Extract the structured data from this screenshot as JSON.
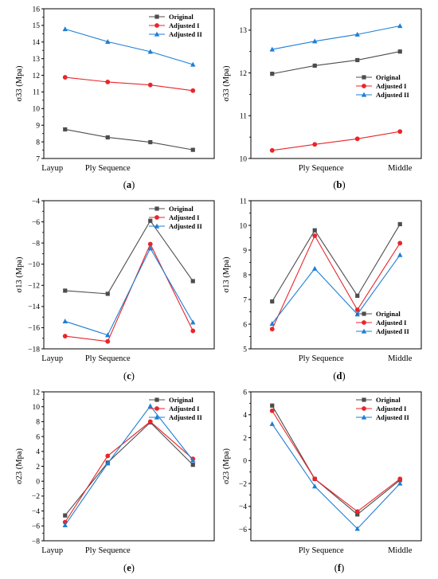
{
  "legend_labels": [
    "Original",
    "Adjusted I",
    "Adjusted II"
  ],
  "series_colors": [
    "#4d4d4d",
    "#e8262a",
    "#1e7ed6"
  ],
  "chart_data": [
    {
      "panel": "a",
      "type": "line",
      "caption": "a",
      "ylabel": "σ33 (Mpa)",
      "ylim": [
        7,
        16
      ],
      "yticks": [
        7,
        8,
        9,
        10,
        11,
        12,
        13,
        14,
        15,
        16
      ],
      "xticks": [
        "Layup",
        "Ply Sequence"
      ],
      "legend": "top-right",
      "series": [
        {
          "name": "Original",
          "values": [
            8.75,
            8.27,
            7.98,
            7.52
          ]
        },
        {
          "name": "Adjusted I",
          "values": [
            11.88,
            11.6,
            11.42,
            11.08
          ]
        },
        {
          "name": "Adjusted II",
          "values": [
            14.78,
            14.02,
            13.42,
            12.65
          ]
        }
      ]
    },
    {
      "panel": "b",
      "type": "line",
      "caption": "b",
      "ylabel": "σ33 (Mpa)",
      "ylim": [
        10,
        13.5
      ],
      "yticks": [
        10,
        11,
        12,
        13
      ],
      "xticks": [
        "Ply Sequence",
        "Middle"
      ],
      "legend": "center-right",
      "series": [
        {
          "name": "Original",
          "values": [
            11.98,
            12.17,
            12.3,
            12.5
          ]
        },
        {
          "name": "Adjusted I",
          "values": [
            10.19,
            10.33,
            10.46,
            10.63
          ]
        },
        {
          "name": "Adjusted II",
          "values": [
            12.55,
            12.74,
            12.9,
            13.1
          ]
        }
      ]
    },
    {
      "panel": "c",
      "type": "line",
      "caption": "c",
      "ylabel": "σ13 (Mpa)",
      "ylim": [
        -18,
        -4
      ],
      "yticks": [
        -18,
        -16,
        -14,
        -12,
        -10,
        -8,
        -6,
        -4
      ],
      "xticks": [
        "Layup",
        "Ply Sequence"
      ],
      "legend": "top-right",
      "series": [
        {
          "name": "Original",
          "values": [
            -12.5,
            -12.8,
            -5.9,
            -11.6
          ]
        },
        {
          "name": "Adjusted I",
          "values": [
            -16.8,
            -17.3,
            -8.1,
            -16.3
          ]
        },
        {
          "name": "Adjusted II",
          "values": [
            -15.4,
            -16.7,
            -8.5,
            -15.5
          ]
        }
      ]
    },
    {
      "panel": "d",
      "type": "line",
      "caption": "d",
      "ylabel": "σ13 (Mpa)",
      "ylim": [
        5,
        11
      ],
      "yticks": [
        5,
        6,
        7,
        8,
        9,
        10,
        11
      ],
      "xticks": [
        "Ply Sequence",
        "Middle"
      ],
      "legend": "bottom-right",
      "series": [
        {
          "name": "Original",
          "values": [
            6.92,
            9.8,
            7.15,
            10.05
          ]
        },
        {
          "name": "Adjusted I",
          "values": [
            5.8,
            9.58,
            6.58,
            9.28
          ]
        },
        {
          "name": "Adjusted II",
          "values": [
            6.02,
            8.25,
            6.4,
            8.8
          ]
        }
      ]
    },
    {
      "panel": "e",
      "type": "line",
      "caption": "e",
      "ylabel": "σ23 (Mpa)",
      "ylim": [
        -8,
        12
      ],
      "yticks": [
        -8,
        -6,
        -4,
        -2,
        0,
        2,
        4,
        6,
        8,
        10,
        12
      ],
      "xticks": [
        "Layup",
        "Ply Sequence"
      ],
      "legend": "top-right",
      "series": [
        {
          "name": "Original",
          "values": [
            -4.6,
            2.5,
            7.9,
            2.2
          ]
        },
        {
          "name": "Adjusted I",
          "values": [
            -5.5,
            3.4,
            8.0,
            3.0
          ]
        },
        {
          "name": "Adjusted II",
          "values": [
            -5.9,
            2.4,
            10.1,
            2.8
          ]
        }
      ]
    },
    {
      "panel": "f",
      "type": "line",
      "caption": "f",
      "ylabel": "σ23 (Mpa)",
      "ylim": [
        -7,
        6
      ],
      "yticks": [
        -6,
        -4,
        -2,
        0,
        2,
        4,
        6
      ],
      "xticks": [
        "Ply Sequence",
        "Middle"
      ],
      "legend": "top-right",
      "series": [
        {
          "name": "Original",
          "values": [
            4.8,
            -1.6,
            -4.7,
            -1.7
          ]
        },
        {
          "name": "Adjusted I",
          "values": [
            4.35,
            -1.6,
            -4.45,
            -1.6
          ]
        },
        {
          "name": "Adjusted II",
          "values": [
            3.2,
            -2.25,
            -5.95,
            -2.0
          ]
        }
      ]
    }
  ]
}
